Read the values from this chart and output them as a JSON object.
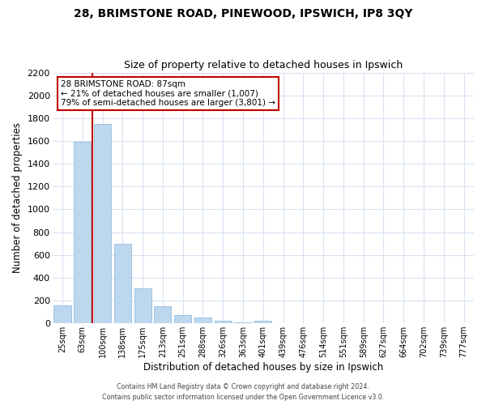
{
  "title": "28, BRIMSTONE ROAD, PINEWOOD, IPSWICH, IP8 3QY",
  "subtitle": "Size of property relative to detached houses in Ipswich",
  "xlabel": "Distribution of detached houses by size in Ipswich",
  "ylabel": "Number of detached properties",
  "bar_labels": [
    "25sqm",
    "63sqm",
    "100sqm",
    "138sqm",
    "175sqm",
    "213sqm",
    "251sqm",
    "288sqm",
    "326sqm",
    "363sqm",
    "401sqm",
    "439sqm",
    "476sqm",
    "514sqm",
    "551sqm",
    "589sqm",
    "627sqm",
    "664sqm",
    "702sqm",
    "739sqm",
    "777sqm"
  ],
  "bar_values": [
    160,
    1590,
    1750,
    700,
    310,
    150,
    75,
    50,
    25,
    10,
    20,
    0,
    0,
    0,
    0,
    0,
    0,
    0,
    0,
    0,
    0
  ],
  "bar_color": "#bdd7ee",
  "bar_edge_color": "#9dc3e6",
  "property_line_bar_idx": 2,
  "property_line_color": "#c00000",
  "ylim": [
    0,
    2200
  ],
  "yticks": [
    0,
    200,
    400,
    600,
    800,
    1000,
    1200,
    1400,
    1600,
    1800,
    2000,
    2200
  ],
  "annotation_title": "28 BRIMSTONE ROAD: 87sqm",
  "annotation_line1": "← 21% of detached houses are smaller (1,007)",
  "annotation_line2": "79% of semi-detached houses are larger (3,801) →",
  "annotation_box_color": "#ffffff",
  "annotation_box_edge": "#c00000",
  "grid_color": "#d9e1f2",
  "background_color": "#ffffff",
  "footer_line1": "Contains HM Land Registry data © Crown copyright and database right 2024.",
  "footer_line2": "Contains public sector information licensed under the Open Government Licence v3.0.",
  "title_fontsize": 10,
  "subtitle_fontsize": 9
}
